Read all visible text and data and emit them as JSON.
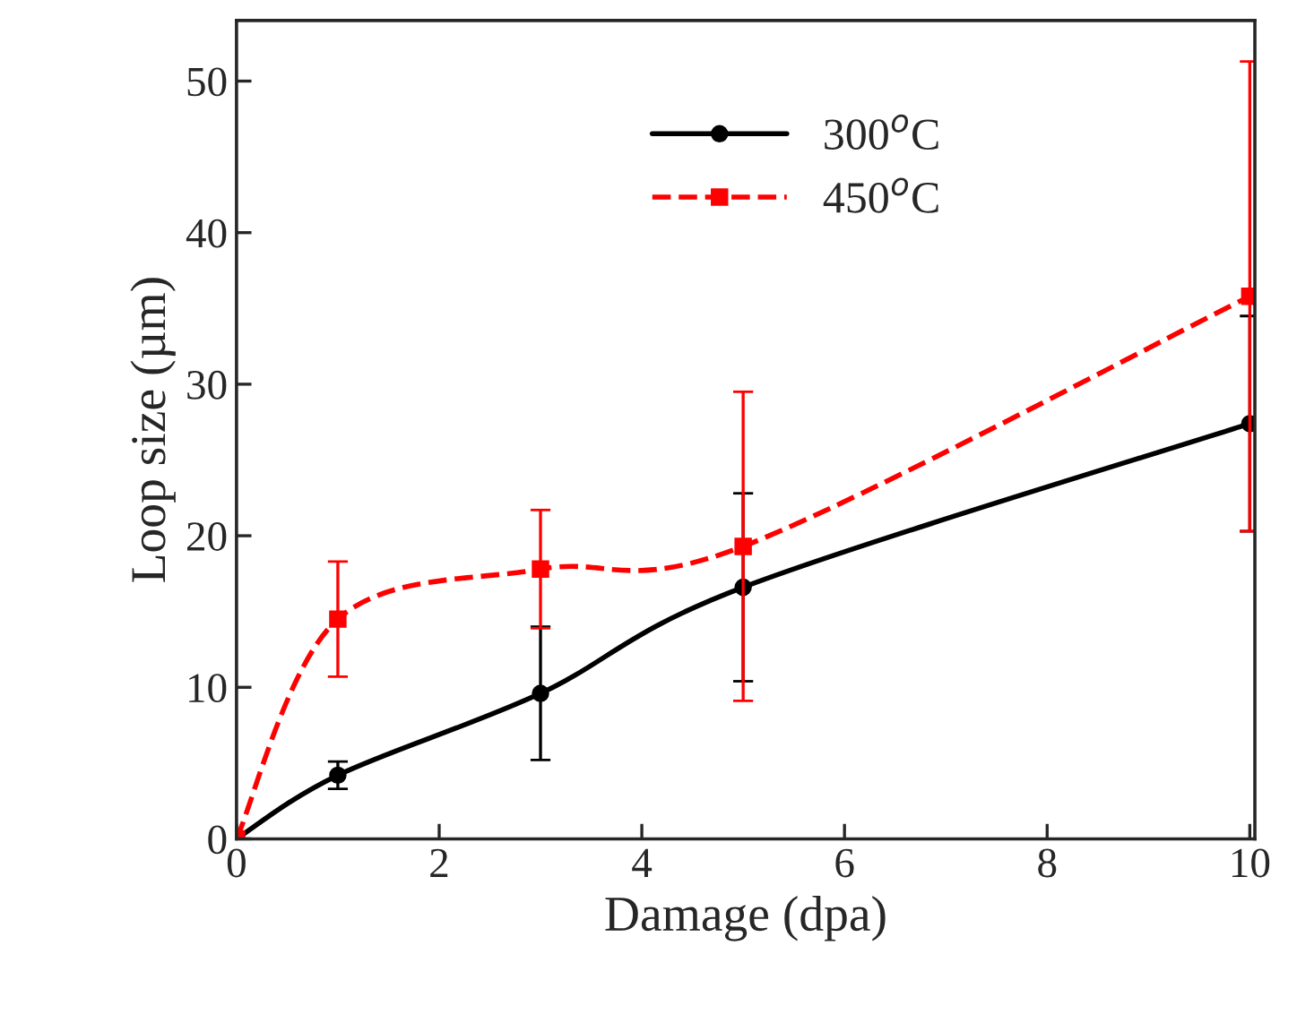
{
  "chart_data": {
    "type": "line",
    "xlabel": "Damage (dpa)",
    "ylabel": "Loop size (µm)",
    "x": [
      0,
      1,
      3,
      5,
      10
    ],
    "series": [
      {
        "name": "300$^{o}$C",
        "color": "#000000",
        "values": [
          0,
          4.2,
          9.6,
          16.6,
          27.4
        ],
        "errors": [
          null,
          0.9,
          4.4,
          6.2,
          7.1
        ],
        "marker": "circle",
        "line_style": "solid"
      },
      {
        "name": "450$^{o}$C",
        "color": "#ff0000",
        "values": [
          0,
          14.5,
          17.8,
          19.3,
          35.8
        ],
        "errors": [
          null,
          3.8,
          3.9,
          10.2,
          15.5
        ],
        "marker": "square",
        "line_style": "dashed"
      }
    ],
    "xlim": [
      0,
      10.05
    ],
    "xticks": [
      0,
      2,
      4,
      6,
      8,
      10
    ],
    "ylim": [
      0,
      54
    ],
    "yticks": [
      0,
      10,
      20,
      30,
      40,
      50
    ],
    "grid": false,
    "legend": "top"
  }
}
